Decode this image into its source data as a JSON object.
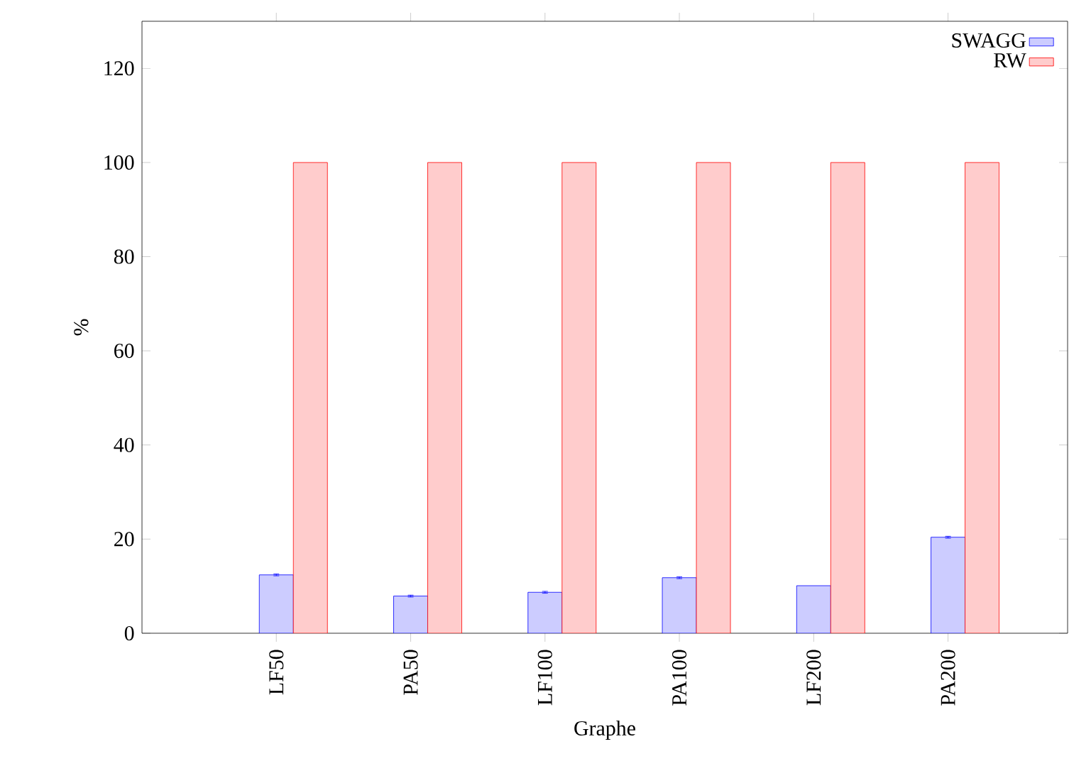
{
  "chart_data": {
    "type": "bar",
    "xlabel": "Graphe",
    "ylabel": "%",
    "categories": [
      "LF50",
      "PA50",
      "LF100",
      "PA100",
      "LF200",
      "PA200"
    ],
    "series": [
      {
        "name": "SWAGG",
        "color": "#ccccff",
        "values": [
          12.4,
          7.9,
          8.7,
          11.8,
          10.1,
          20.4
        ],
        "errors": [
          0.2,
          0.2,
          0.2,
          0.2,
          null,
          0.2
        ]
      },
      {
        "name": "RW",
        "color": "#ffcccc",
        "values": [
          100,
          100,
          100,
          100,
          100,
          100
        ]
      }
    ],
    "ylim": [
      0,
      130
    ],
    "yticks": [
      0,
      20,
      40,
      60,
      80,
      100,
      120
    ],
    "grid": false,
    "legend": "top right"
  }
}
